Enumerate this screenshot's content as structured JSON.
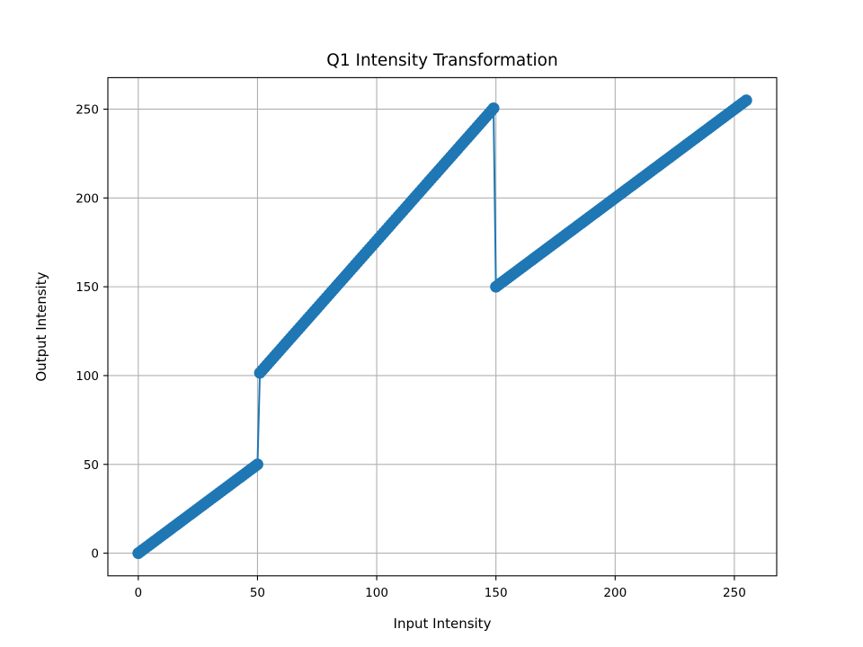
{
  "chart_data": {
    "type": "line",
    "title": "Q1 Intensity Transformation",
    "xlabel": "Input Intensity",
    "ylabel": "Output Intensity",
    "xlim": [
      -12.75,
      267.75
    ],
    "ylim": [
      -12.75,
      267.75
    ],
    "x_ticks": [
      0,
      50,
      100,
      150,
      200,
      250
    ],
    "y_ticks": [
      0,
      50,
      100,
      150,
      200,
      250
    ],
    "grid": true,
    "legend": "none",
    "series": [
      {
        "color": "#1f77b4",
        "marker": "circle",
        "segments": [
          {
            "x_start": 0,
            "x_end": 50,
            "slope": 1,
            "intercept": 0
          },
          {
            "x_start": 51,
            "x_end": 149,
            "slope": 1.52,
            "intercept": 24
          },
          {
            "x_start": 150,
            "x_end": 255,
            "slope": 1,
            "intercept": 0
          }
        ]
      }
    ]
  }
}
